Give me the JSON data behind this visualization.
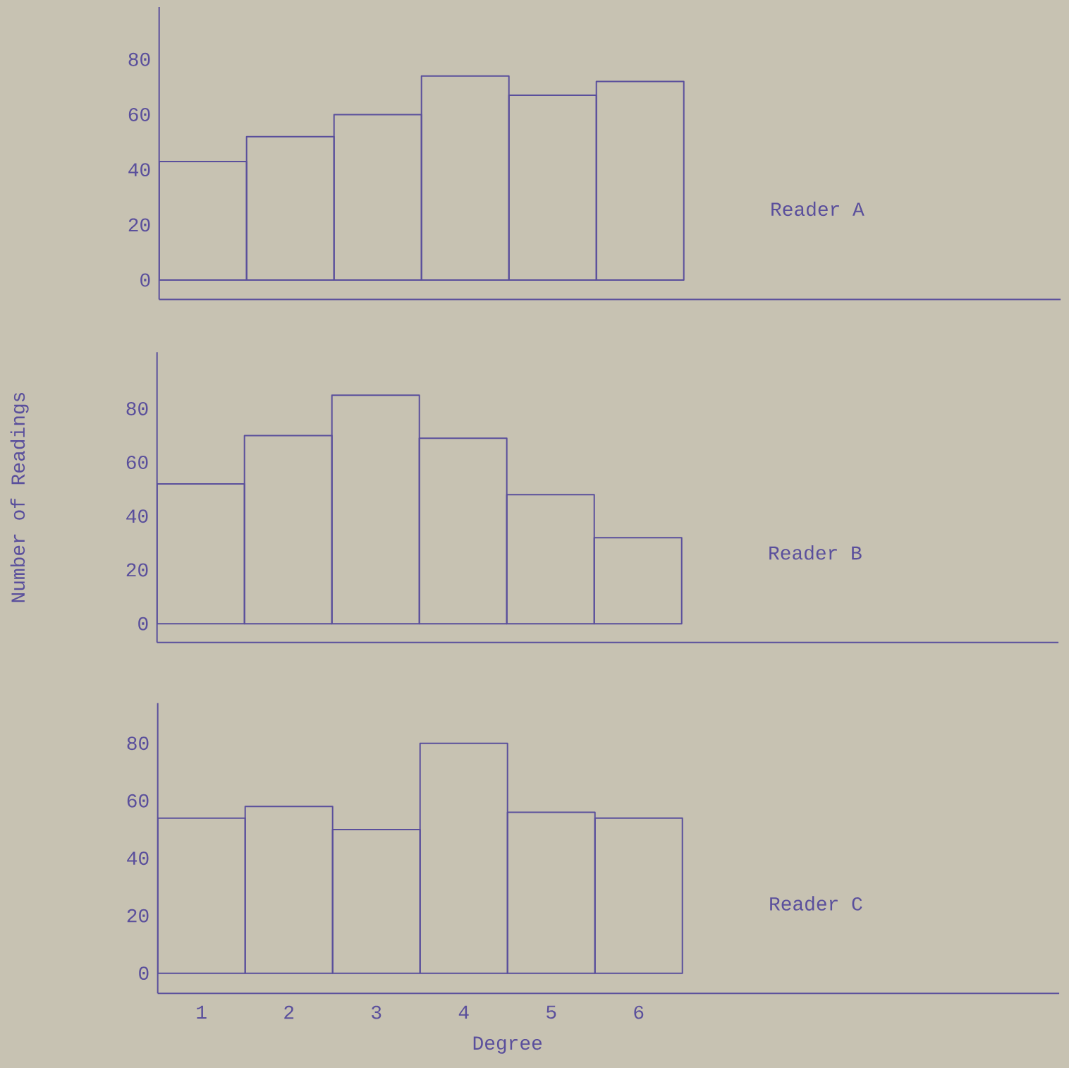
{
  "chart_data": [
    {
      "type": "bar",
      "categories": [
        "1",
        "2",
        "3",
        "4",
        "5",
        "6"
      ],
      "ylim": [
        -7,
        99
      ],
      "yticks": [
        0,
        20,
        40,
        60,
        80
      ],
      "tick_labels": "y",
      "series": [
        {
          "name": "Reader A",
          "color": "#5a4f9c",
          "values": [
            43,
            52,
            60,
            74,
            67,
            72
          ]
        }
      ]
    },
    {
      "type": "bar",
      "ylabel": "Number of Readings",
      "categories": [
        "1",
        "2",
        "3",
        "4",
        "5",
        "6"
      ],
      "ylim": [
        -7,
        101
      ],
      "yticks": [
        0,
        20,
        40,
        60,
        80
      ],
      "tick_labels": "y",
      "series": [
        {
          "name": "Reader B",
          "color": "#5a4f9c",
          "values": [
            52,
            70,
            85,
            69,
            48,
            32
          ]
        }
      ]
    },
    {
      "type": "bar",
      "xlabel": "Degree",
      "categories": [
        "1",
        "2",
        "3",
        "4",
        "5",
        "6"
      ],
      "ylim": [
        -7,
        94
      ],
      "yticks": [
        0,
        20,
        40,
        60,
        80
      ],
      "series": [
        {
          "name": "Reader C",
          "color": "#5a4f9c",
          "values": [
            54,
            58,
            50,
            80,
            56,
            54
          ]
        }
      ]
    }
  ]
}
